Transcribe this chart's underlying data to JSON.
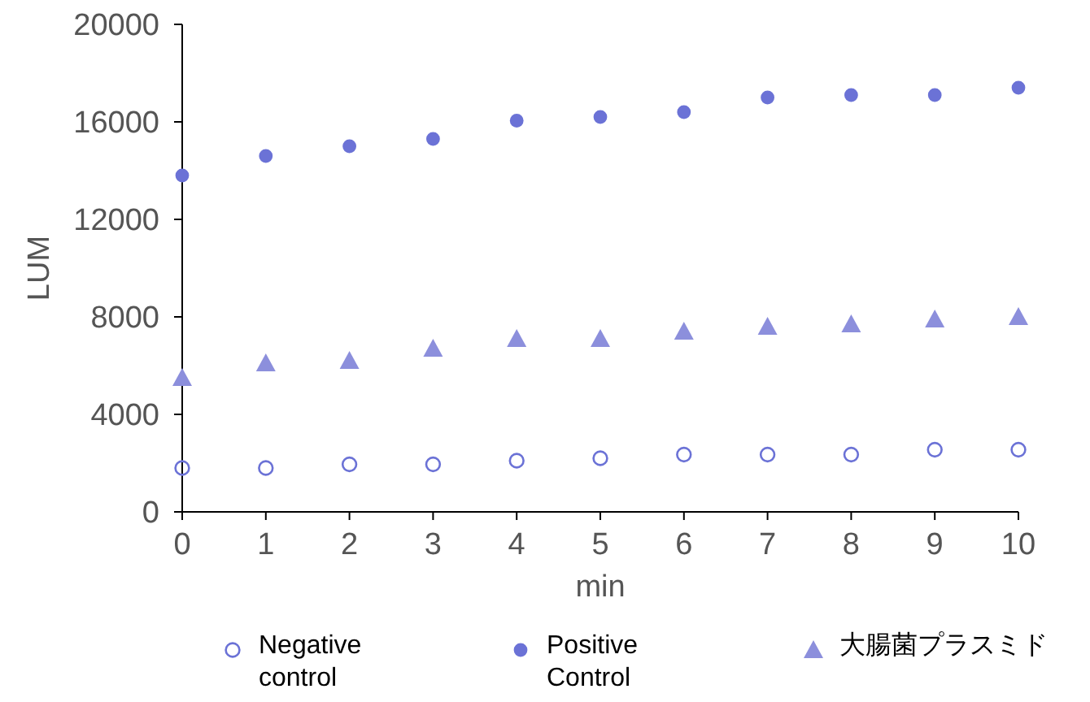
{
  "chart_data": {
    "type": "scatter",
    "xlabel": "min",
    "ylabel": "LUM",
    "x": [
      0,
      1,
      2,
      3,
      4,
      5,
      6,
      7,
      8,
      9,
      10
    ],
    "xlim": [
      0,
      10
    ],
    "xticks": [
      0,
      1,
      2,
      3,
      4,
      5,
      6,
      7,
      8,
      9,
      10
    ],
    "ylim": [
      0,
      20000
    ],
    "yticks": [
      0,
      4000,
      8000,
      12000,
      16000,
      20000
    ],
    "grid": false,
    "legend": "bottom",
    "series": [
      {
        "name": "Negative\ncontrol",
        "color": "#6b72d6",
        "marker": "open-circle",
        "values": [
          1800,
          1800,
          1950,
          1950,
          2100,
          2200,
          2350,
          2350,
          2350,
          2550,
          2550
        ]
      },
      {
        "name": "Positive\nControl",
        "color": "#6b72d6",
        "marker": "circle",
        "values": [
          13800,
          14600,
          15000,
          15300,
          16050,
          16200,
          16400,
          17000,
          17100,
          17100,
          17400
        ]
      },
      {
        "name": "大腸菌プラスミド",
        "color": "#8c8fdc",
        "marker": "triangle",
        "values": [
          5500,
          6100,
          6200,
          6700,
          7100,
          7100,
          7400,
          7600,
          7700,
          7900,
          8000
        ]
      }
    ]
  }
}
